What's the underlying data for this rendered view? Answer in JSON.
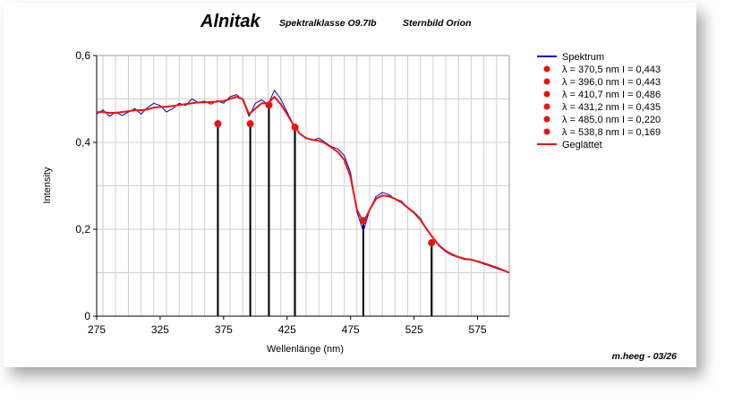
{
  "chart_data": {
    "type": "line",
    "title": "Alnitak",
    "subtitle_class": "Spektralklasse O9.7Ib",
    "subtitle_constellation": "Sternbild Orion",
    "xlabel": "Wellenlänge (nm)",
    "ylabel": "Intensity",
    "xlim": [
      275,
      600
    ],
    "ylim": [
      0,
      0.6
    ],
    "x_ticks": [
      "275",
      "325",
      "375",
      "425",
      "475",
      "525",
      "575"
    ],
    "y_ticks": [
      "0",
      "0,2",
      "0,4",
      "0,6"
    ],
    "grid": true,
    "legend_position": "right",
    "credit": "m.heeg - 03/26",
    "colors": {
      "spectrum": "#0000cc",
      "smoothed": "#ee1111",
      "marker": "#ee1111",
      "drop_line": "#000000"
    },
    "series": [
      {
        "name": "Spektrum",
        "x": [
          275,
          280,
          285,
          290,
          295,
          300,
          305,
          310,
          315,
          320,
          325,
          330,
          335,
          340,
          345,
          350,
          355,
          360,
          365,
          370,
          375,
          380,
          385,
          390,
          395,
          400,
          405,
          410,
          415,
          420,
          425,
          430,
          435,
          440,
          445,
          450,
          455,
          460,
          465,
          470,
          475,
          480,
          485,
          490,
          495,
          500,
          505,
          510,
          515,
          520,
          525,
          530,
          535,
          540,
          545,
          550,
          555,
          560,
          565,
          570,
          575,
          580,
          585,
          590,
          595,
          600
        ],
        "y": [
          0.465,
          0.475,
          0.46,
          0.47,
          0.462,
          0.47,
          0.478,
          0.465,
          0.48,
          0.49,
          0.485,
          0.47,
          0.478,
          0.49,
          0.485,
          0.5,
          0.492,
          0.495,
          0.488,
          0.496,
          0.49,
          0.505,
          0.51,
          0.498,
          0.46,
          0.49,
          0.498,
          0.487,
          0.52,
          0.5,
          0.47,
          0.44,
          0.42,
          0.41,
          0.405,
          0.41,
          0.4,
          0.39,
          0.385,
          0.37,
          0.33,
          0.24,
          0.195,
          0.245,
          0.275,
          0.285,
          0.28,
          0.27,
          0.265,
          0.25,
          0.24,
          0.225,
          0.2,
          0.18,
          0.16,
          0.148,
          0.14,
          0.135,
          0.13,
          0.13,
          0.125,
          0.12,
          0.115,
          0.11,
          0.105,
          0.1
        ]
      },
      {
        "name": "Geglättet",
        "x": [
          275,
          280,
          285,
          290,
          295,
          300,
          305,
          310,
          315,
          320,
          325,
          330,
          335,
          340,
          345,
          350,
          355,
          360,
          365,
          370,
          375,
          380,
          385,
          390,
          395,
          400,
          405,
          410,
          415,
          420,
          425,
          430,
          435,
          440,
          445,
          450,
          455,
          460,
          465,
          470,
          475,
          480,
          485,
          490,
          495,
          500,
          505,
          510,
          515,
          520,
          525,
          530,
          535,
          540,
          545,
          550,
          555,
          560,
          565,
          570,
          575,
          580,
          585,
          590,
          595,
          600
        ],
        "y": [
          0.47,
          0.47,
          0.468,
          0.468,
          0.47,
          0.472,
          0.474,
          0.474,
          0.476,
          0.48,
          0.482,
          0.482,
          0.484,
          0.486,
          0.488,
          0.49,
          0.492,
          0.492,
          0.493,
          0.494,
          0.495,
          0.5,
          0.505,
          0.5,
          0.465,
          0.478,
          0.49,
          0.49,
          0.505,
          0.488,
          0.465,
          0.44,
          0.42,
          0.41,
          0.406,
          0.404,
          0.398,
          0.388,
          0.378,
          0.36,
          0.32,
          0.245,
          0.215,
          0.245,
          0.27,
          0.278,
          0.276,
          0.27,
          0.262,
          0.25,
          0.238,
          0.222,
          0.2,
          0.18,
          0.162,
          0.15,
          0.142,
          0.136,
          0.132,
          0.13,
          0.126,
          0.122,
          0.117,
          0.112,
          0.106,
          0.1
        ]
      }
    ],
    "markers": [
      {
        "lambda": 370.5,
        "intensity": 0.443,
        "label": "λ = 370,5 nm   I = 0,443"
      },
      {
        "lambda": 396.0,
        "intensity": 0.443,
        "label": "λ = 396,0 nm   I = 0,443"
      },
      {
        "lambda": 410.7,
        "intensity": 0.486,
        "label": "λ = 410,7 nm   I = 0,486"
      },
      {
        "lambda": 431.2,
        "intensity": 0.435,
        "label": "λ = 431,2 nm   I = 0,435"
      },
      {
        "lambda": 485.0,
        "intensity": 0.22,
        "label": "λ = 485,0 nm   I = 0,220"
      },
      {
        "lambda": 538.8,
        "intensity": 0.169,
        "label": "λ = 538,8 nm   I = 0,169"
      }
    ]
  }
}
